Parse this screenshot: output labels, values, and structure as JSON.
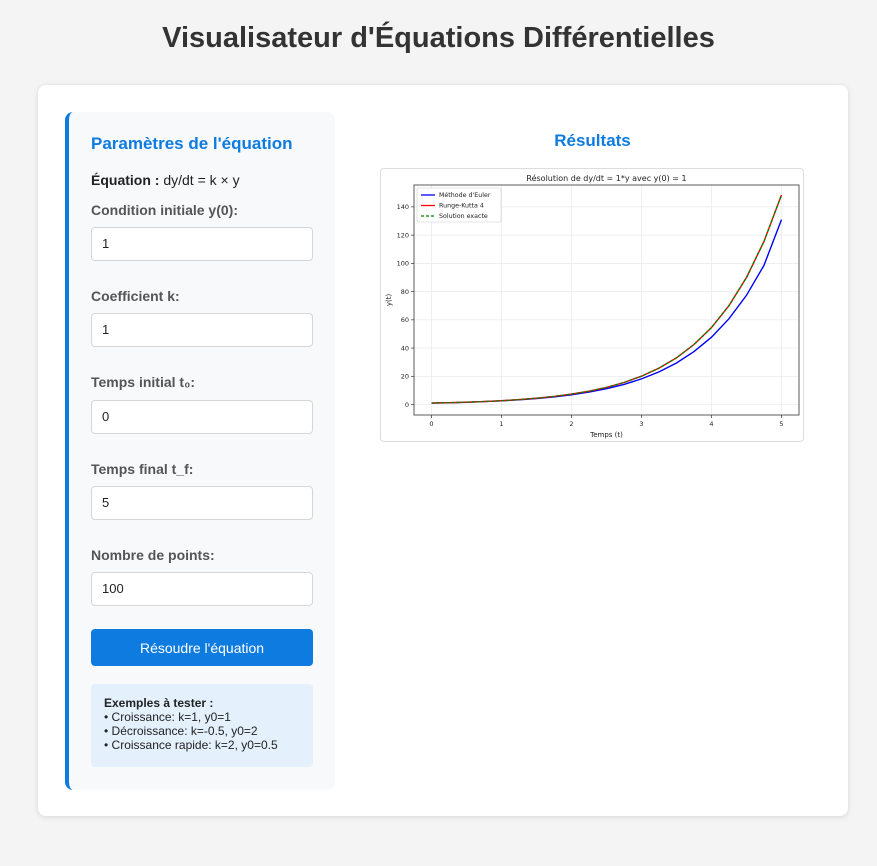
{
  "page": {
    "title": "Visualisateur d'Équations Différentielles"
  },
  "params": {
    "heading": "Paramètres de l'équation",
    "equation_label": "Équation :",
    "equation_text": " dy/dt = k × y",
    "fields": [
      {
        "label": "Condition initiale y(0):",
        "value": "1"
      },
      {
        "label": "Coefficient k:",
        "value": "1"
      },
      {
        "label": "Temps initial t₀:",
        "value": "0"
      },
      {
        "label": "Temps final t_f:",
        "value": "5"
      },
      {
        "label": "Nombre de points:",
        "value": "100"
      }
    ],
    "solve_button": "Résoudre l'équation",
    "examples": {
      "title": "Exemples à tester :",
      "items": [
        "• Croissance: k=1, y0=1",
        "• Décroissance: k=-0.5, y0=2",
        "• Croissance rapide: k=2, y0=0.5"
      ]
    }
  },
  "results": {
    "heading": "Résultats"
  },
  "chart_data": {
    "type": "line",
    "title": "Résolution de dy/dt = 1*y avec y(0) = 1",
    "xlabel": "Temps (t)",
    "ylabel": "y(t)",
    "xlim": [
      -0.25,
      5.25
    ],
    "ylim": [
      -7.4,
      155.5
    ],
    "xticks": [
      0,
      1,
      2,
      3,
      4,
      5
    ],
    "yticks": [
      0,
      20,
      40,
      60,
      80,
      100,
      120,
      140
    ],
    "grid": true,
    "legend_position": "top-left",
    "x": [
      0,
      0.25,
      0.5,
      0.75,
      1,
      1.25,
      1.5,
      1.75,
      2,
      2.25,
      2.5,
      2.75,
      3,
      3.25,
      3.5,
      3.75,
      4,
      4.25,
      4.5,
      4.75,
      5
    ],
    "series": [
      {
        "name": "Méthode d'Euler",
        "color": "#0000ff",
        "style": "solid",
        "values": [
          1,
          1.27,
          1.62,
          2.06,
          2.63,
          3.34,
          4.26,
          5.42,
          6.91,
          8.79,
          11.2,
          14.3,
          18.2,
          23.1,
          29.4,
          37.5,
          47.7,
          60.8,
          77.4,
          98.6,
          131
        ]
      },
      {
        "name": "Runge-Kutta 4",
        "color": "#ff0000",
        "style": "solid",
        "values": [
          1,
          1.28,
          1.65,
          2.12,
          2.72,
          3.49,
          4.48,
          5.75,
          7.39,
          9.49,
          12.18,
          15.64,
          20.09,
          25.79,
          33.12,
          42.52,
          54.6,
          70.1,
          90.02,
          115.58,
          148.4
        ]
      },
      {
        "name": "Solution exacte",
        "color": "#008000",
        "style": "dashed",
        "values": [
          1,
          1.28,
          1.65,
          2.12,
          2.72,
          3.49,
          4.48,
          5.75,
          7.39,
          9.49,
          12.18,
          15.64,
          20.09,
          25.79,
          33.12,
          42.52,
          54.6,
          70.1,
          90.02,
          115.58,
          148.4
        ]
      }
    ]
  }
}
